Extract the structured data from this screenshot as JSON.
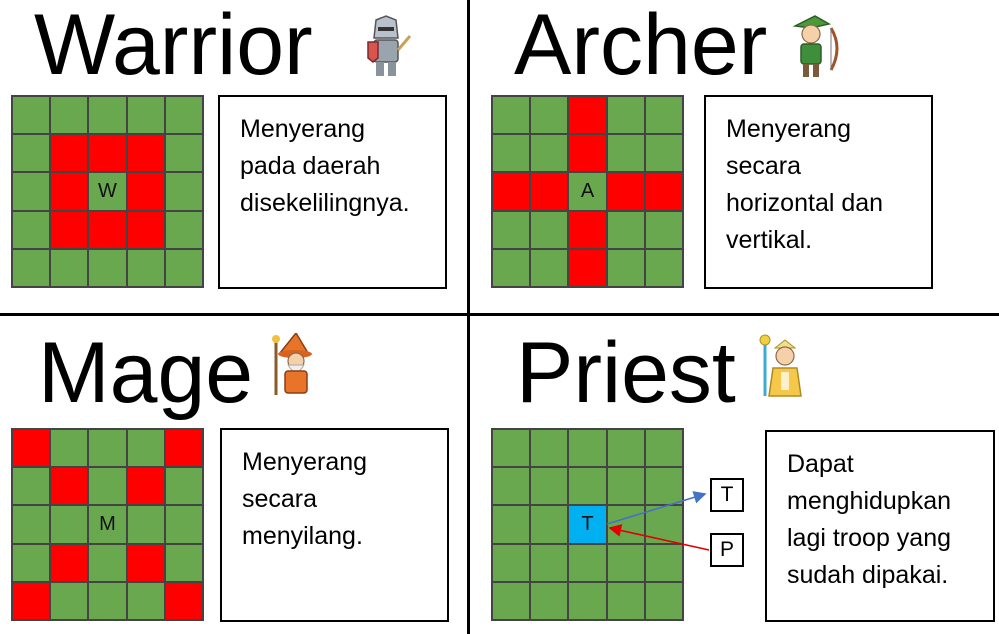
{
  "panels": {
    "warrior": {
      "title": "Warrior",
      "icon": "knight-icon",
      "center_label": "W",
      "attack_cells": [
        [
          1,
          1
        ],
        [
          1,
          2
        ],
        [
          1,
          3
        ],
        [
          2,
          1
        ],
        [
          2,
          3
        ],
        [
          3,
          1
        ],
        [
          3,
          2
        ],
        [
          3,
          3
        ]
      ],
      "desc_lines": [
        "Menyerang",
        "pada daerah",
        "disekelilingnya."
      ]
    },
    "archer": {
      "title": "Archer",
      "icon": "archer-icon",
      "center_label": "A",
      "attack_cells": [
        [
          0,
          2
        ],
        [
          1,
          2
        ],
        [
          2,
          0
        ],
        [
          2,
          1
        ],
        [
          2,
          3
        ],
        [
          2,
          4
        ],
        [
          3,
          2
        ],
        [
          4,
          2
        ]
      ],
      "desc_lines": [
        "Menyerang",
        "secara",
        "horizontal dan",
        "vertikal."
      ]
    },
    "mage": {
      "title": "Mage",
      "icon": "wizard-icon",
      "center_label": "M",
      "attack_cells": [
        [
          0,
          0
        ],
        [
          0,
          4
        ],
        [
          1,
          1
        ],
        [
          1,
          3
        ],
        [
          3,
          1
        ],
        [
          3,
          3
        ],
        [
          4,
          0
        ],
        [
          4,
          4
        ]
      ],
      "desc_lines": [
        "Menyerang",
        "secara",
        "menyilang."
      ]
    },
    "priest": {
      "title": "Priest",
      "icon": "priest-icon",
      "center_label": "T",
      "target_label": "T",
      "priest_label": "P",
      "desc_lines": [
        "Dapat",
        "menghidupkan",
        "lagi troop yang",
        "sudah dipakai."
      ]
    }
  },
  "colors": {
    "grass": "#6aa84f",
    "attack": "#ff0000",
    "revive_target": "#00b0f0",
    "arrow_blue": "#4472c4",
    "arrow_red": "#e00000"
  }
}
